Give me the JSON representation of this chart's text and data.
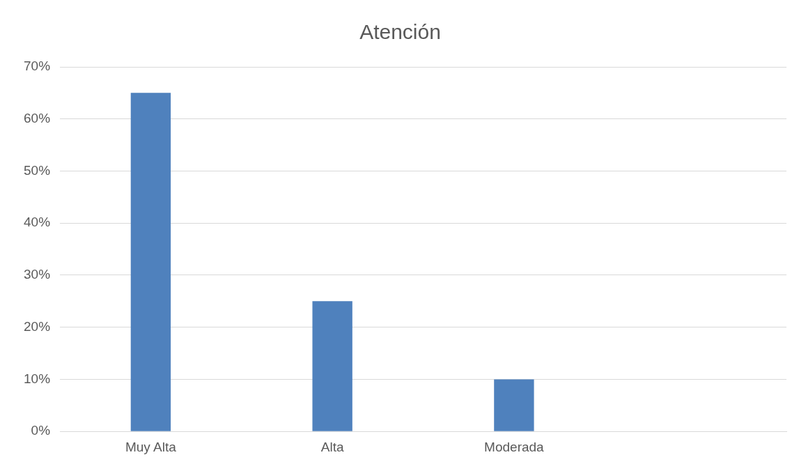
{
  "chart_data": {
    "type": "bar",
    "title": "Atención",
    "categories": [
      "Muy Alta",
      "Alta",
      "Moderada",
      null
    ],
    "values": [
      65,
      25,
      10,
      null
    ],
    "color": "#4f81bd",
    "ylim": [
      0,
      70
    ],
    "yticks": [
      {
        "value": 0,
        "label": "0%"
      },
      {
        "value": 10,
        "label": "10%"
      },
      {
        "value": 20,
        "label": "20%"
      },
      {
        "value": 30,
        "label": "30%"
      },
      {
        "value": 40,
        "label": "40%"
      },
      {
        "value": 50,
        "label": "50%"
      },
      {
        "value": 60,
        "label": "60%"
      },
      {
        "value": 70,
        "label": "70%"
      }
    ],
    "grid": "y",
    "legend": false
  }
}
